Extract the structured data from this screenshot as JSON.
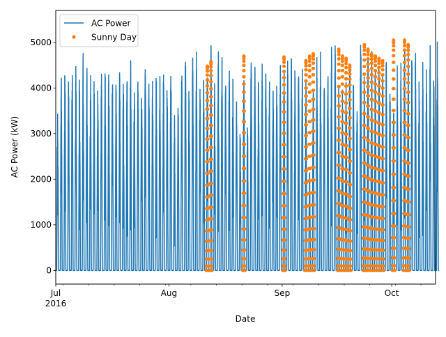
{
  "chart_data": {
    "type": "line",
    "xlabel": "Date",
    "ylabel": "AC Power (kW)",
    "xlim": [
      "2016-07-01",
      "2016-10-13"
    ],
    "ylim": [
      -300,
      5700
    ],
    "x_ticks": [
      {
        "date": "2016-07-01",
        "label": "Jul",
        "sublabel": "2016"
      },
      {
        "date": "2016-08-01",
        "label": "Aug",
        "sublabel": ""
      },
      {
        "date": "2016-09-01",
        "label": "Sep",
        "sublabel": ""
      },
      {
        "date": "2016-10-01",
        "label": "Oct",
        "sublabel": ""
      }
    ],
    "y_ticks": [
      0,
      1000,
      2000,
      3000,
      4000,
      5000
    ],
    "grid": false,
    "legend_position": "top-left",
    "series": [
      {
        "name": "AC Power",
        "kind": "line",
        "color": "#1f77b4",
        "daily_peaks": [
          3500,
          4550,
          4850,
          4200,
          4850,
          4700,
          4300,
          4850,
          4650,
          4600,
          4300,
          4320,
          4350,
          4600,
          4700,
          4450,
          4300,
          4700,
          4350,
          4650,
          4700,
          4350,
          4300,
          4700,
          4750,
          4250,
          4400,
          4450,
          4300,
          4450,
          4300,
          4980,
          3450,
          3800,
          4650,
          5050,
          4250,
          4950,
          4900,
          4200,
          4400,
          4550,
          4950,
          4300,
          4950,
          4850,
          4300,
          4800,
          4400,
          3800,
          3200,
          4650,
          3350,
          4900,
          4850,
          4400,
          4750,
          4720,
          4350,
          4200,
          4650,
          4650,
          4600,
          4720,
          4750,
          4550,
          4800,
          4650,
          4300,
          2200,
          4550,
          4700,
          4900,
          4350,
          4650,
          5280,
          5150,
          4100,
          4000,
          4350,
          4850,
          4450,
          3900,
          5420,
          4850,
          5050,
          4900,
          4800,
          4900,
          4650,
          4700,
          4300,
          3650,
          4600,
          4650,
          5260,
          5200,
          4700,
          4950,
          4300,
          4650,
          4700,
          4950,
          4950,
          5250
        ]
      },
      {
        "name": "Sunny Day",
        "kind": "scatter",
        "color": "#ff7f0e",
        "days": [
          "2016-08-11",
          "2016-08-12",
          "2016-08-21",
          "2016-09-01",
          "2016-09-07",
          "2016-09-08",
          "2016-09-09",
          "2016-09-16",
          "2016-09-17",
          "2016-09-18",
          "2016-09-19",
          "2016-09-23",
          "2016-09-24",
          "2016-09-25",
          "2016-09-26",
          "2016-09-27",
          "2016-09-28",
          "2016-10-01",
          "2016-10-04",
          "2016-10-05"
        ],
        "peaks": [
          4480,
          4580,
          4700,
          4680,
          4600,
          4700,
          4750,
          4850,
          4700,
          4650,
          4500,
          4950,
          4850,
          4750,
          4700,
          4650,
          4600,
          5050,
          5050,
          4950
        ]
      }
    ]
  }
}
